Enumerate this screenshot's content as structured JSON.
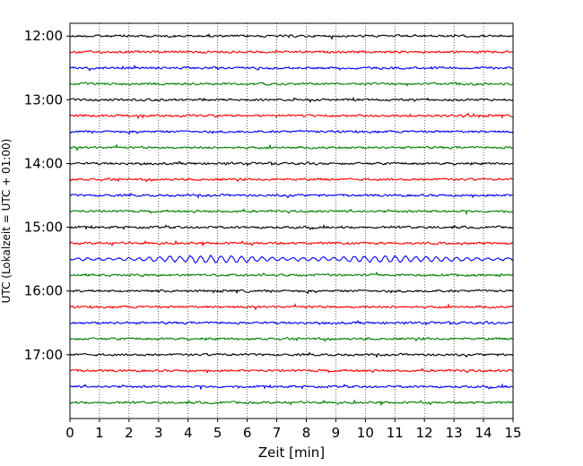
{
  "chart_data": {
    "type": "line",
    "title": "",
    "xlabel": "Zeit  [min]",
    "ylabel": "UTC (Lokalzeit = UTC + 01:00)",
    "xlim": [
      0,
      15
    ],
    "x_ticks": [
      0,
      1,
      2,
      3,
      4,
      5,
      6,
      7,
      8,
      9,
      10,
      11,
      12,
      13,
      14,
      15
    ],
    "ylim_hours": [
      11.8,
      18.0
    ],
    "y_ticks": [
      {
        "hour": 12,
        "label": "12:00"
      },
      {
        "hour": 13,
        "label": "13:00"
      },
      {
        "hour": 14,
        "label": "14:00"
      },
      {
        "hour": 15,
        "label": "15:00"
      },
      {
        "hour": 16,
        "label": "16:00"
      },
      {
        "hour": 17,
        "label": "17:00"
      }
    ],
    "vertical_grid": "dotted",
    "trace_interval_min": 15,
    "trace_colors": [
      "#000000",
      "#ff0000",
      "#0000ff",
      "#007f00"
    ],
    "trace_start_hours": [
      12.0,
      12.25,
      12.5,
      12.75,
      13.0,
      13.25,
      13.5,
      13.75,
      14.0,
      14.25,
      14.5,
      14.75,
      15.0,
      15.25,
      15.5,
      15.75,
      16.0,
      16.25,
      16.5,
      16.75,
      17.0,
      17.25,
      17.5,
      17.75
    ],
    "highlight_trace_hour": 15.5
  }
}
